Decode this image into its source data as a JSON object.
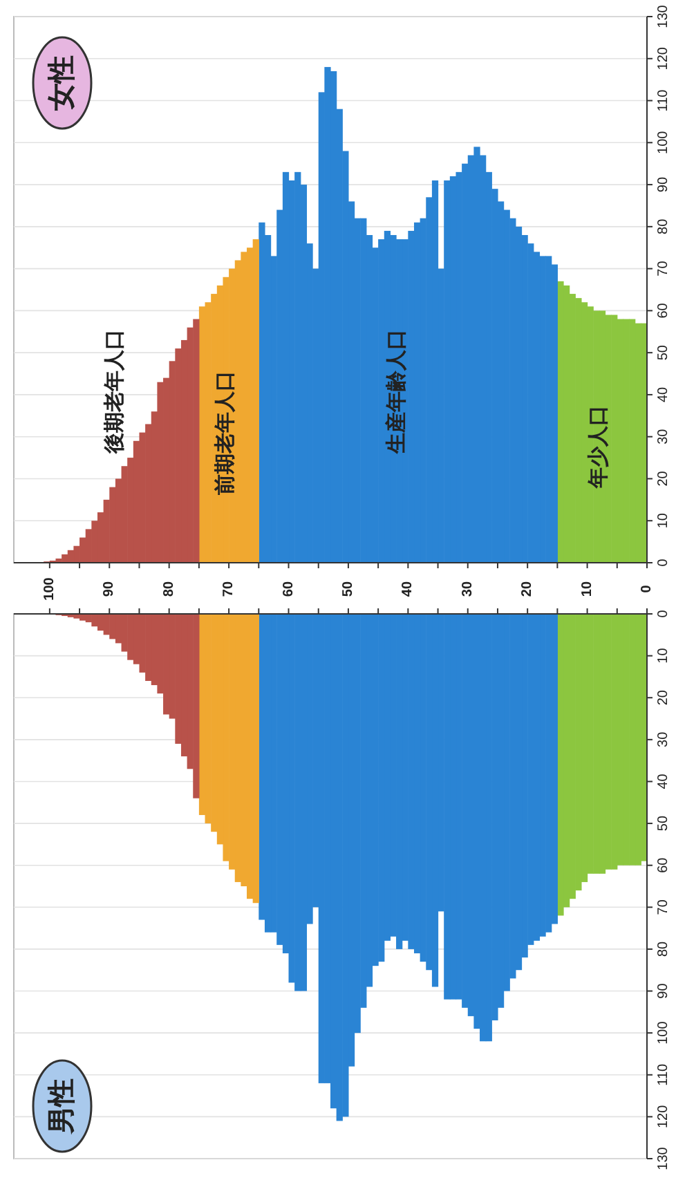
{
  "chart_data": [
    {
      "type": "bar",
      "title": "女性",
      "xlim": [
        106,
        0
      ],
      "ylim": [
        0,
        130
      ],
      "xticks": [
        0,
        {
          "value": 5,
          "label": null
        },
        10,
        {
          "value": 15,
          "label": null
        },
        20,
        {
          "value": 25,
          "label": null
        },
        30,
        {
          "value": 35,
          "label": null
        },
        40,
        {
          "value": 45,
          "label": null
        },
        50,
        {
          "value": 55,
          "label": null
        },
        60,
        {
          "value": 65,
          "label": null
        },
        70,
        {
          "value": 75,
          "label": null
        },
        80,
        {
          "value": 85,
          "label": null
        },
        90,
        {
          "value": 95,
          "label": null
        },
        100
      ],
      "yticks": [
        0,
        10,
        20,
        30,
        40,
        50,
        60,
        70,
        80,
        90,
        100,
        110,
        120,
        130
      ],
      "grid": "y",
      "series": [
        {
          "color": "#8cc63f",
          "x": [
            0,
            1,
            2,
            3,
            4,
            5,
            6,
            7,
            8,
            9,
            10,
            11,
            12,
            13,
            14
          ],
          "values": [
            57,
            57,
            58,
            58,
            58,
            59,
            59,
            60,
            60,
            61,
            62,
            63,
            64,
            66,
            67
          ]
        },
        {
          "color": "#2a84d4",
          "x": [
            15,
            16,
            17,
            18,
            19,
            20,
            21,
            22,
            23,
            24,
            25,
            26,
            27,
            28,
            29,
            30,
            31,
            32,
            33,
            34,
            35,
            36,
            37,
            38,
            39,
            40,
            41,
            42,
            43,
            44,
            45,
            46,
            47,
            48,
            49,
            50,
            51,
            52,
            53,
            54,
            55,
            56,
            57,
            58,
            59,
            60,
            61,
            62,
            63,
            64
          ],
          "values": [
            71,
            73,
            73,
            74,
            76,
            78,
            80,
            82,
            84,
            86,
            89,
            93,
            97,
            99,
            97,
            95,
            93,
            92,
            91,
            70,
            91,
            87,
            82,
            81,
            79,
            77,
            77,
            78,
            79,
            77,
            75,
            78,
            82,
            82,
            86,
            98,
            108,
            117,
            118,
            112,
            70,
            76,
            90,
            93,
            91,
            93,
            84,
            73,
            78,
            81
          ]
        },
        {
          "color": "#f0a830",
          "x": [
            65,
            66,
            67,
            68,
            69,
            70,
            71,
            72,
            73,
            74
          ],
          "values": [
            77,
            75,
            74,
            72,
            70,
            68,
            66,
            64,
            62,
            61
          ]
        },
        {
          "color": "#b8524a",
          "x": [
            75,
            76,
            77,
            78,
            79,
            80,
            81,
            82,
            83,
            84,
            85,
            86,
            87,
            88,
            89,
            90,
            91,
            92,
            93,
            94,
            95,
            96,
            97,
            98,
            99,
            100
          ],
          "values": [
            58,
            56,
            53,
            51,
            48,
            44,
            43,
            36,
            33,
            31,
            29,
            25,
            23,
            20,
            18,
            15,
            12,
            10,
            8,
            6,
            4,
            3,
            2,
            1,
            0.5,
            0.3
          ]
        }
      ],
      "annotations": [
        "後期老年人口",
        "前期老年人口",
        "生産年齢人口",
        "年少人口"
      ]
    },
    {
      "type": "bar",
      "title": "男性",
      "xlim": [
        106,
        0
      ],
      "ylim": [
        130,
        0
      ],
      "tick_labels": "y",
      "xticks": [
        0,
        {
          "value": 5,
          "label": null
        },
        10,
        {
          "value": 15,
          "label": null
        },
        20,
        {
          "value": 25,
          "label": null
        },
        30,
        {
          "value": 35,
          "label": null
        },
        40,
        {
          "value": 45,
          "label": null
        },
        50,
        {
          "value": 55,
          "label": null
        },
        60,
        {
          "value": 65,
          "label": null
        },
        70,
        {
          "value": 75,
          "label": null
        },
        80,
        {
          "value": 85,
          "label": null
        },
        90,
        {
          "value": 95,
          "label": null
        },
        100
      ],
      "yticks": [
        0,
        10,
        20,
        30,
        40,
        50,
        60,
        70,
        80,
        90,
        100,
        110,
        120,
        130
      ],
      "grid": "y",
      "series": [
        {
          "color": "#8cc63f",
          "x": [
            0,
            1,
            2,
            3,
            4,
            5,
            6,
            7,
            8,
            9,
            10,
            11,
            12,
            13,
            14
          ],
          "values": [
            59,
            60,
            60,
            60,
            60,
            61,
            61,
            62,
            62,
            62,
            64,
            66,
            68,
            70,
            72
          ]
        },
        {
          "color": "#2a84d4",
          "x": [
            15,
            16,
            17,
            18,
            19,
            20,
            21,
            22,
            23,
            24,
            25,
            26,
            27,
            28,
            29,
            30,
            31,
            32,
            33,
            34,
            35,
            36,
            37,
            38,
            39,
            40,
            41,
            42,
            43,
            44,
            45,
            46,
            47,
            48,
            49,
            50,
            51,
            52,
            53,
            54,
            55,
            56,
            57,
            58,
            59,
            60,
            61,
            62,
            63,
            64
          ],
          "values": [
            74,
            76,
            77,
            78,
            79,
            82,
            85,
            87,
            90,
            94,
            97,
            102,
            102,
            99,
            96,
            94,
            92,
            92,
            92,
            71,
            89,
            85,
            83,
            81,
            80,
            78,
            80,
            77,
            78,
            83,
            84,
            89,
            94,
            100,
            108,
            120,
            121,
            118,
            112,
            112,
            70,
            74,
            90,
            90,
            88,
            81,
            79,
            76,
            76,
            73
          ]
        },
        {
          "color": "#f0a830",
          "x": [
            65,
            66,
            67,
            68,
            69,
            70,
            71,
            72,
            73,
            74
          ],
          "values": [
            69,
            68,
            65,
            64,
            61,
            59,
            55,
            52,
            50,
            48
          ]
        },
        {
          "color": "#b8524a",
          "x": [
            75,
            76,
            77,
            78,
            79,
            80,
            81,
            82,
            83,
            84,
            85,
            86,
            87,
            88,
            89,
            90,
            91,
            92,
            93,
            94,
            95,
            96,
            97,
            98
          ],
          "values": [
            44,
            37,
            34,
            31,
            25,
            24,
            19,
            17,
            16,
            14,
            12,
            11,
            9,
            7,
            6,
            5,
            4,
            3,
            2,
            1.6,
            1.1,
            0.8,
            0.5,
            0.3
          ]
        }
      ]
    }
  ]
}
